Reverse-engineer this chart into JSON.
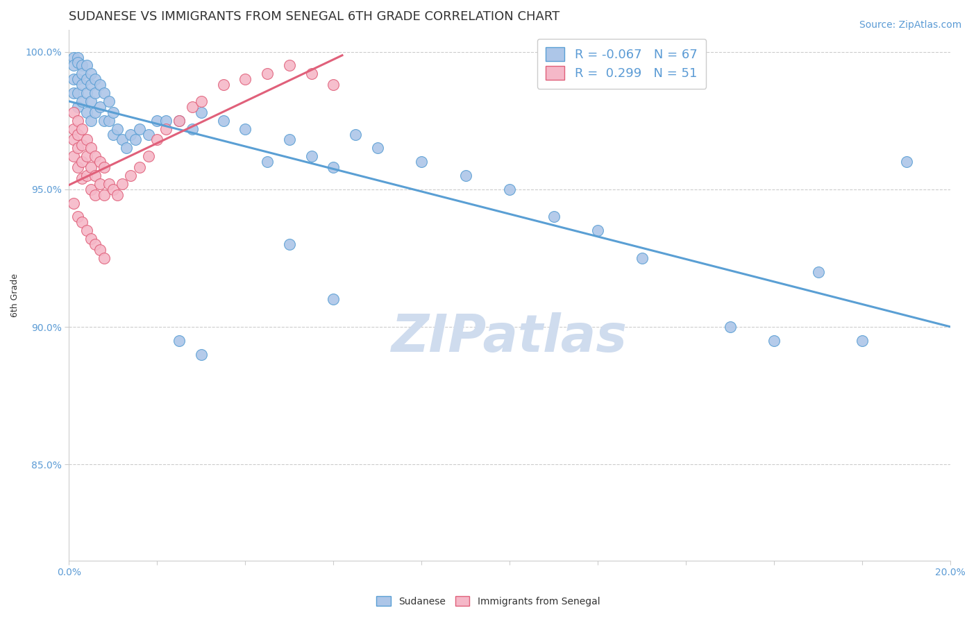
{
  "title": "SUDANESE VS IMMIGRANTS FROM SENEGAL 6TH GRADE CORRELATION CHART",
  "source_text": "Source: ZipAtlas.com",
  "ylabel": "6th Grade",
  "xlim": [
    0.0,
    0.2
  ],
  "ylim": [
    0.815,
    1.008
  ],
  "xticks": [
    0.0,
    0.02,
    0.04,
    0.06,
    0.08,
    0.1,
    0.12,
    0.14,
    0.16,
    0.18,
    0.2
  ],
  "yticks": [
    0.85,
    0.9,
    0.95,
    1.0
  ],
  "yticklabels": [
    "85.0%",
    "90.0%",
    "95.0%",
    "100.0%"
  ],
  "blue_fill": "#adc6e8",
  "blue_edge": "#5a9fd4",
  "pink_fill": "#f5b8c8",
  "pink_edge": "#e0607a",
  "blue_line_color": "#5a9fd4",
  "pink_line_color": "#e0607a",
  "R_blue": -0.067,
  "N_blue": 67,
  "R_pink": 0.299,
  "N_pink": 51,
  "watermark_text": "ZIPatlas",
  "watermark_color": "#cfdcee",
  "grid_color": "#cccccc",
  "background_color": "#ffffff",
  "title_fontsize": 13,
  "axis_label_fontsize": 9,
  "tick_fontsize": 10,
  "legend_fontsize": 13,
  "source_fontsize": 10,
  "tick_color": "#5b9bd5",
  "text_color": "#333333",
  "blue_scatter_x": [
    0.001,
    0.001,
    0.001,
    0.001,
    0.002,
    0.002,
    0.002,
    0.002,
    0.002,
    0.003,
    0.003,
    0.003,
    0.003,
    0.004,
    0.004,
    0.004,
    0.004,
    0.005,
    0.005,
    0.005,
    0.005,
    0.006,
    0.006,
    0.006,
    0.007,
    0.007,
    0.008,
    0.008,
    0.009,
    0.009,
    0.01,
    0.01,
    0.011,
    0.012,
    0.013,
    0.014,
    0.015,
    0.016,
    0.018,
    0.02,
    0.022,
    0.025,
    0.028,
    0.03,
    0.035,
    0.04,
    0.045,
    0.05,
    0.055,
    0.06,
    0.065,
    0.07,
    0.08,
    0.09,
    0.1,
    0.11,
    0.12,
    0.13,
    0.15,
    0.16,
    0.17,
    0.18,
    0.19,
    0.05,
    0.06,
    0.025,
    0.03
  ],
  "blue_scatter_y": [
    0.998,
    0.995,
    0.99,
    0.985,
    0.998,
    0.996,
    0.99,
    0.985,
    0.98,
    0.995,
    0.992,
    0.988,
    0.982,
    0.995,
    0.99,
    0.985,
    0.978,
    0.992,
    0.988,
    0.982,
    0.975,
    0.99,
    0.985,
    0.978,
    0.988,
    0.98,
    0.985,
    0.975,
    0.982,
    0.975,
    0.978,
    0.97,
    0.972,
    0.968,
    0.965,
    0.97,
    0.968,
    0.972,
    0.97,
    0.975,
    0.975,
    0.975,
    0.972,
    0.978,
    0.975,
    0.972,
    0.96,
    0.968,
    0.962,
    0.958,
    0.97,
    0.965,
    0.96,
    0.955,
    0.95,
    0.94,
    0.935,
    0.925,
    0.9,
    0.895,
    0.92,
    0.895,
    0.96,
    0.93,
    0.91,
    0.895,
    0.89
  ],
  "pink_scatter_x": [
    0.001,
    0.001,
    0.001,
    0.001,
    0.002,
    0.002,
    0.002,
    0.002,
    0.003,
    0.003,
    0.003,
    0.003,
    0.004,
    0.004,
    0.004,
    0.005,
    0.005,
    0.005,
    0.006,
    0.006,
    0.006,
    0.007,
    0.007,
    0.008,
    0.008,
    0.009,
    0.01,
    0.011,
    0.012,
    0.014,
    0.016,
    0.018,
    0.02,
    0.022,
    0.025,
    0.028,
    0.03,
    0.035,
    0.04,
    0.045,
    0.05,
    0.055,
    0.06,
    0.001,
    0.002,
    0.003,
    0.004,
    0.005,
    0.006,
    0.007,
    0.008
  ],
  "pink_scatter_y": [
    0.978,
    0.972,
    0.968,
    0.962,
    0.975,
    0.97,
    0.965,
    0.958,
    0.972,
    0.966,
    0.96,
    0.954,
    0.968,
    0.962,
    0.955,
    0.965,
    0.958,
    0.95,
    0.962,
    0.955,
    0.948,
    0.96,
    0.952,
    0.958,
    0.948,
    0.952,
    0.95,
    0.948,
    0.952,
    0.955,
    0.958,
    0.962,
    0.968,
    0.972,
    0.975,
    0.98,
    0.982,
    0.988,
    0.99,
    0.992,
    0.995,
    0.992,
    0.988,
    0.945,
    0.94,
    0.938,
    0.935,
    0.932,
    0.93,
    0.928,
    0.925
  ]
}
